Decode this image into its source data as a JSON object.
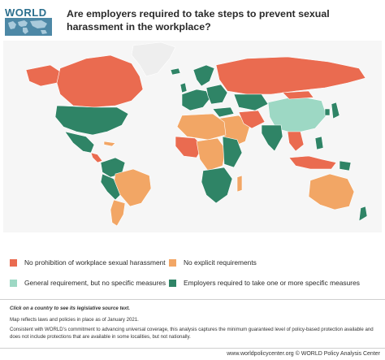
{
  "header": {
    "logo_text": "WORLD",
    "title": "Are employers required to take steps to prevent sexual harassment in the workplace?"
  },
  "colors": {
    "no_prohibition": "#ea6b50",
    "no_explicit": "#f2a665",
    "general": "#9dd8c4",
    "specific": "#2f8466",
    "no_data": "#eeeeee"
  },
  "legend": {
    "items": [
      {
        "label": "No prohibition of workplace sexual harassment",
        "color": "#ea6b50"
      },
      {
        "label": "No explicit requirements",
        "color": "#f2a665"
      },
      {
        "label": "General requirement, but no specific measures",
        "color": "#9dd8c4"
      },
      {
        "label": "Employers required to take one or more specific measures",
        "color": "#2f8466"
      }
    ]
  },
  "notes": {
    "instruction": "Click on a country to see its legislative source text.",
    "date_note": "Map reflects laws and policies in place as of January 2021.",
    "coverage_note": "Consistent with WORLD’s commitment to advancing universal coverage, this analysis captures the minimum guaranteed level of policy-based protection available and does not include protections that are available in some localities, but not nationally."
  },
  "footer": {
    "credit": "www.worldpolicycenter.org © WORLD Policy Analysis Center"
  }
}
